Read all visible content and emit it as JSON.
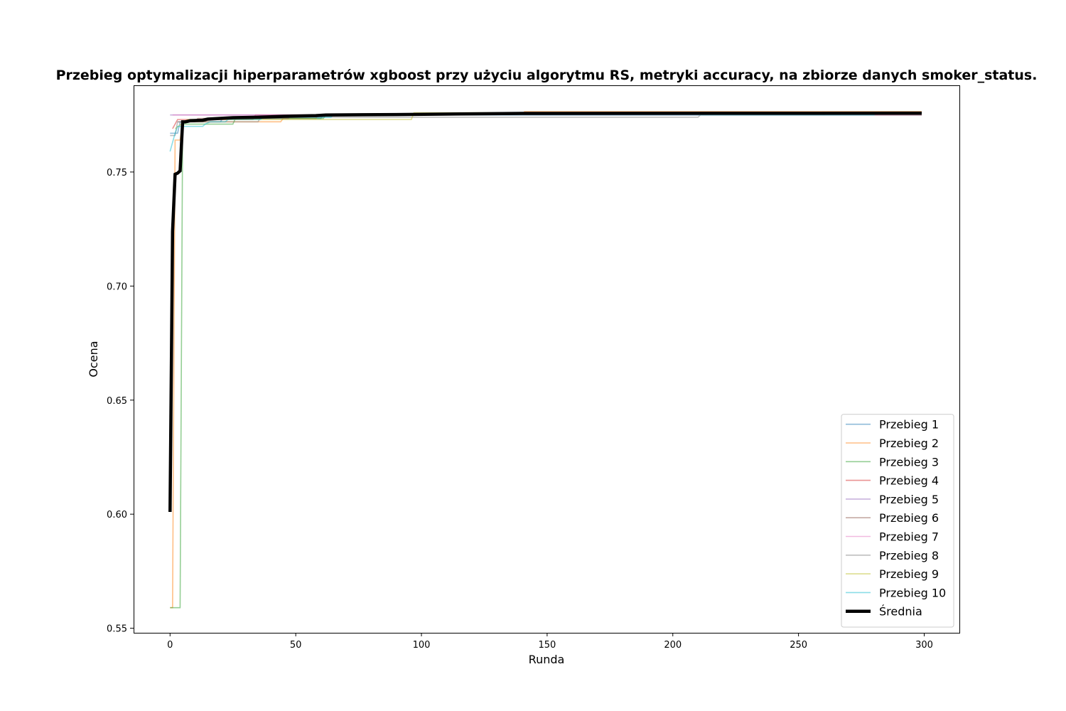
{
  "chart_data": {
    "type": "line",
    "title": "Przebieg optymalizacji hiperparametrów xgboost przy użyciu algorytmu RS, metryki accuracy, na zbiorze danych smoker_status.",
    "xlabel": "Runda",
    "ylabel": "Ocena",
    "xlim": [
      -14.5,
      314
    ],
    "ylim": [
      0.548,
      0.788
    ],
    "xticks": [
      0,
      50,
      100,
      150,
      200,
      250,
      300
    ],
    "yticks": [
      0.55,
      0.6,
      0.65,
      0.7,
      0.75
    ],
    "ytick_labels": [
      "0.55",
      "0.60",
      "0.65",
      "0.70",
      "0.75"
    ],
    "grid": false,
    "legend_position": "lower-right",
    "series": [
      {
        "name": "Przebieg 1",
        "color": "#1f77b4",
        "alpha": 0.5,
        "points": [
          [
            0,
            0.767
          ],
          [
            3,
            0.767
          ],
          [
            4,
            0.772
          ],
          [
            20,
            0.772
          ],
          [
            21,
            0.7735
          ],
          [
            60,
            0.7735
          ],
          [
            61,
            0.775
          ],
          [
            140,
            0.775
          ],
          [
            141,
            0.776
          ],
          [
            299,
            0.776
          ]
        ]
      },
      {
        "name": "Przebieg 2",
        "color": "#ff7f0e",
        "alpha": 0.5,
        "points": [
          [
            0,
            0.559
          ],
          [
            1,
            0.559
          ],
          [
            2,
            0.764
          ],
          [
            4,
            0.764
          ],
          [
            5,
            0.772
          ],
          [
            44,
            0.772
          ],
          [
            45,
            0.7735
          ],
          [
            58,
            0.7735
          ],
          [
            59,
            0.775
          ],
          [
            140,
            0.775
          ],
          [
            141,
            0.7765
          ],
          [
            299,
            0.7765
          ]
        ]
      },
      {
        "name": "Przebieg 3",
        "color": "#2ca02c",
        "alpha": 0.5,
        "points": [
          [
            0,
            0.559
          ],
          [
            4,
            0.559
          ],
          [
            5,
            0.771
          ],
          [
            25,
            0.771
          ],
          [
            26,
            0.7735
          ],
          [
            61,
            0.7735
          ],
          [
            62,
            0.775
          ],
          [
            299,
            0.775
          ]
        ]
      },
      {
        "name": "Przebieg 4",
        "color": "#d62728",
        "alpha": 0.5,
        "points": [
          [
            1,
            0.769
          ],
          [
            3,
            0.773
          ],
          [
            33,
            0.773
          ],
          [
            34,
            0.775
          ],
          [
            299,
            0.775
          ]
        ]
      },
      {
        "name": "Przebieg 5",
        "color": "#9467bd",
        "alpha": 0.5,
        "points": [
          [
            0,
            0.775
          ],
          [
            299,
            0.775
          ]
        ]
      },
      {
        "name": "Przebieg 6",
        "color": "#8c564b",
        "alpha": 0.5,
        "points": [
          [
            3,
            0.772
          ],
          [
            10,
            0.772
          ],
          [
            11,
            0.7735
          ],
          [
            47,
            0.7735
          ],
          [
            48,
            0.775
          ],
          [
            299,
            0.775
          ]
        ]
      },
      {
        "name": "Przebieg 7",
        "color": "#e377c2",
        "alpha": 0.5,
        "points": [
          [
            1,
            0.775
          ],
          [
            299,
            0.775
          ]
        ]
      },
      {
        "name": "Przebieg 8",
        "color": "#7f7f7f",
        "alpha": 0.5,
        "points": [
          [
            0,
            0.766
          ],
          [
            2,
            0.766
          ],
          [
            3,
            0.772
          ],
          [
            35,
            0.772
          ],
          [
            36,
            0.774
          ],
          [
            210,
            0.774
          ],
          [
            211,
            0.775
          ],
          [
            299,
            0.775
          ]
        ]
      },
      {
        "name": "Przebieg 9",
        "color": "#bcbd22",
        "alpha": 0.5,
        "points": [
          [
            2,
            0.769
          ],
          [
            7,
            0.773
          ],
          [
            96,
            0.773
          ],
          [
            97,
            0.776
          ],
          [
            299,
            0.776
          ]
        ]
      },
      {
        "name": "Przebieg 10",
        "color": "#17becf",
        "alpha": 0.5,
        "points": [
          [
            0,
            0.759
          ],
          [
            2,
            0.767
          ],
          [
            3,
            0.77
          ],
          [
            13,
            0.77
          ],
          [
            14,
            0.771
          ],
          [
            16,
            0.772
          ],
          [
            22,
            0.772
          ],
          [
            23,
            0.773
          ],
          [
            36,
            0.773
          ],
          [
            37,
            0.774
          ],
          [
            64,
            0.774
          ],
          [
            65,
            0.775
          ],
          [
            280,
            0.775
          ],
          [
            281,
            0.776
          ],
          [
            299,
            0.776
          ]
        ]
      },
      {
        "name": "Średnia",
        "color": "#000000",
        "alpha": 1,
        "width": 4.5,
        "points": [
          [
            0,
            0.601
          ],
          [
            1,
            0.724
          ],
          [
            2,
            0.749
          ],
          [
            3,
            0.7495
          ],
          [
            4,
            0.7505
          ],
          [
            5,
            0.772
          ],
          [
            6,
            0.772
          ],
          [
            7,
            0.7722
          ],
          [
            8,
            0.7725
          ],
          [
            13,
            0.7727
          ],
          [
            15,
            0.7732
          ],
          [
            20,
            0.7735
          ],
          [
            25,
            0.7738
          ],
          [
            35,
            0.774
          ],
          [
            45,
            0.7744
          ],
          [
            58,
            0.7747
          ],
          [
            62,
            0.775
          ],
          [
            90,
            0.7752
          ],
          [
            140,
            0.7757
          ],
          [
            299,
            0.7758
          ]
        ]
      }
    ]
  }
}
